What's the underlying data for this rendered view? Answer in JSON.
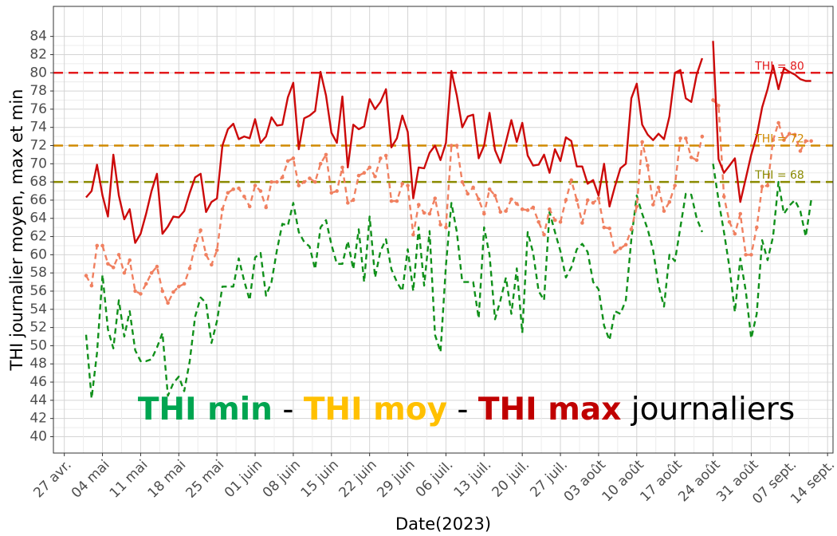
{
  "chart_data": {
    "type": "line",
    "x_title": "Date(2023)",
    "y_title": "THI journalier moyen, max et min",
    "xlim": [
      "2023-04-25",
      "2023-09-15"
    ],
    "ylim": [
      38.2,
      87.3
    ],
    "yticks": [
      40,
      42,
      44,
      46,
      48,
      50,
      52,
      54,
      56,
      58,
      60,
      62,
      64,
      66,
      68,
      70,
      72,
      74,
      76,
      78,
      80,
      82,
      84
    ],
    "xticks": [
      {
        "value": "2023-04-27",
        "label": "27 avr."
      },
      {
        "value": "2023-05-04",
        "label": "04 mai"
      },
      {
        "value": "2023-05-11",
        "label": "11 mai"
      },
      {
        "value": "2023-05-18",
        "label": "18 mai"
      },
      {
        "value": "2023-05-25",
        "label": "25 mai"
      },
      {
        "value": "2023-06-01",
        "label": "01 juin"
      },
      {
        "value": "2023-06-08",
        "label": "08 juin"
      },
      {
        "value": "2023-06-15",
        "label": "15 juin"
      },
      {
        "value": "2023-06-22",
        "label": "22 juin"
      },
      {
        "value": "2023-06-29",
        "label": "29 juin"
      },
      {
        "value": "2023-07-06",
        "label": "06 juil."
      },
      {
        "value": "2023-07-13",
        "label": "13 juil."
      },
      {
        "value": "2023-07-20",
        "label": "20 juil."
      },
      {
        "value": "2023-07-27",
        "label": "27 juil."
      },
      {
        "value": "2023-08-03",
        "label": "03 août"
      },
      {
        "value": "2023-08-10",
        "label": "10 août"
      },
      {
        "value": "2023-08-17",
        "label": "17 août"
      },
      {
        "value": "2023-08-24",
        "label": "24 août"
      },
      {
        "value": "2023-08-31",
        "label": "31 août"
      },
      {
        "value": "2023-09-07",
        "label": "07 sept."
      },
      {
        "value": "2023-09-14",
        "label": "14 sept."
      }
    ],
    "grid": true,
    "x": [
      "2023-05-01",
      "2023-05-02",
      "2023-05-03",
      "2023-05-04",
      "2023-05-05",
      "2023-05-06",
      "2023-05-07",
      "2023-05-08",
      "2023-05-09",
      "2023-05-10",
      "2023-05-11",
      "2023-05-12",
      "2023-05-13",
      "2023-05-14",
      "2023-05-15",
      "2023-05-16",
      "2023-05-17",
      "2023-05-18",
      "2023-05-19",
      "2023-05-20",
      "2023-05-21",
      "2023-05-22",
      "2023-05-23",
      "2023-05-24",
      "2023-05-25",
      "2023-05-26",
      "2023-05-27",
      "2023-05-28",
      "2023-05-29",
      "2023-05-30",
      "2023-05-31",
      "2023-06-01",
      "2023-06-02",
      "2023-06-03",
      "2023-06-04",
      "2023-06-05",
      "2023-06-06",
      "2023-06-07",
      "2023-06-08",
      "2023-06-09",
      "2023-06-10",
      "2023-06-11",
      "2023-06-12",
      "2023-06-13",
      "2023-06-14",
      "2023-06-15",
      "2023-06-16",
      "2023-06-17",
      "2023-06-18",
      "2023-06-19",
      "2023-06-20",
      "2023-06-21",
      "2023-06-22",
      "2023-06-23",
      "2023-06-24",
      "2023-06-25",
      "2023-06-26",
      "2023-06-27",
      "2023-06-28",
      "2023-06-29",
      "2023-06-30",
      "2023-07-01",
      "2023-07-02",
      "2023-07-03",
      "2023-07-04",
      "2023-07-05",
      "2023-07-06",
      "2023-07-07",
      "2023-07-08",
      "2023-07-09",
      "2023-07-10",
      "2023-07-11",
      "2023-07-12",
      "2023-07-13",
      "2023-07-14",
      "2023-07-15",
      "2023-07-16",
      "2023-07-17",
      "2023-07-18",
      "2023-07-19",
      "2023-07-20",
      "2023-07-21",
      "2023-07-22",
      "2023-07-23",
      "2023-07-24",
      "2023-07-25",
      "2023-07-26",
      "2023-07-27",
      "2023-07-28",
      "2023-07-29",
      "2023-07-30",
      "2023-07-31",
      "2023-08-01",
      "2023-08-02",
      "2023-08-03",
      "2023-08-04",
      "2023-08-05",
      "2023-08-06",
      "2023-08-07",
      "2023-08-08",
      "2023-08-09",
      "2023-08-10",
      "2023-08-11",
      "2023-08-12",
      "2023-08-13",
      "2023-08-14",
      "2023-08-15",
      "2023-08-16",
      "2023-08-17",
      "2023-08-18",
      "2023-08-19",
      "2023-08-20",
      "2023-08-21",
      "2023-08-22",
      "2023-08-23",
      "2023-08-24",
      "2023-08-25",
      "2023-08-26",
      "2023-08-27",
      "2023-08-28",
      "2023-08-29",
      "2023-08-30",
      "2023-08-31",
      "2023-09-01",
      "2023-09-02",
      "2023-09-03",
      "2023-09-04",
      "2023-09-05",
      "2023-09-06",
      "2023-09-07",
      "2023-09-08",
      "2023-09-09",
      "2023-09-10",
      "2023-09-11"
    ],
    "series": [
      {
        "color": "#10901a",
        "dash": "7,5",
        "markers": false,
        "values": [
          51.2,
          44.2,
          49.2,
          57.8,
          51.8,
          49.7,
          55,
          51,
          53.8,
          49.5,
          48.3,
          48.3,
          48.5,
          49.8,
          51.4,
          44.5,
          45.9,
          46.6,
          45,
          48.3,
          53.2,
          55.3,
          54.7,
          50.3,
          52.7,
          56.5,
          56.5,
          56.5,
          59.6,
          57.1,
          55,
          59.7,
          60.2,
          55.5,
          57,
          60.5,
          63.4,
          63.2,
          65.7,
          62.5,
          61.4,
          60.9,
          58.4,
          63,
          63.8,
          61.1,
          59,
          59,
          61.5,
          58.4,
          62.8,
          57,
          64.2,
          57.5,
          60.4,
          61.7,
          58.4,
          57,
          56,
          60.6,
          56,
          63,
          56.6,
          62.6,
          51.2,
          49.3,
          58.8,
          65.7,
          62.5,
          57,
          57,
          57,
          53,
          63,
          60,
          52.9,
          55,
          57.5,
          53.5,
          58.5,
          51.4,
          62.5,
          60.2,
          56,
          55,
          64.7,
          62.5,
          60.4,
          57.5,
          58.6,
          60.6,
          61.2,
          60.3,
          57,
          56.2,
          52.2,
          50.6,
          53.8,
          53.5,
          55,
          61.7,
          66.5,
          64.5,
          62.8,
          60.5,
          56.6,
          54.3,
          60,
          59.3,
          63,
          66.7,
          66.6,
          64,
          62.5,
          null,
          70,
          66,
          62.5,
          58.6,
          53.7,
          59.6,
          56,
          50.8,
          53.5,
          61.6,
          59.4,
          62,
          68,
          64.5,
          65.4,
          66,
          64.8,
          62,
          66
        ]
      },
      {
        "color": "#f08060",
        "dash": "7,5",
        "markers": true,
        "values": [
          57.7,
          56.6,
          61,
          61,
          59,
          58.6,
          60,
          58,
          59.4,
          56,
          55.7,
          56.8,
          58,
          58.7,
          56,
          54.7,
          55.9,
          56.5,
          56.8,
          58.5,
          61,
          62.7,
          60,
          58.9,
          60.5,
          65,
          66.8,
          67.2,
          67.3,
          66.4,
          65.3,
          67.6,
          67,
          65.2,
          68,
          68,
          68.5,
          70.3,
          70.6,
          67.6,
          68,
          68.4,
          68,
          70,
          71,
          66.8,
          67,
          69.6,
          65.7,
          66,
          68.7,
          69,
          69.6,
          68.6,
          70.6,
          70.9,
          65.9,
          65.9,
          67.8,
          67.6,
          62.2,
          65.5,
          64.6,
          64.5,
          66.2,
          63.3,
          63,
          72,
          72,
          68,
          66.7,
          67.4,
          66.1,
          64.5,
          67.2,
          66.5,
          64.7,
          64.8,
          66.1,
          65.6,
          65,
          64.9,
          65.2,
          63.6,
          62.2,
          65,
          63.8,
          63.6,
          66,
          68.2,
          66,
          63.5,
          66,
          65.7,
          66.2,
          63,
          62.9,
          60.3,
          60.7,
          61.1,
          62.8,
          65.3,
          72.4,
          69.8,
          65.5,
          67.4,
          64.8,
          65.8,
          67.6,
          72.8,
          72.8,
          70.7,
          70.4,
          73,
          null,
          77,
          76.4,
          66.4,
          63.6,
          62.3,
          64.5,
          60,
          60,
          63,
          67.5,
          67.6,
          72.6,
          74.5,
          72.6,
          73.3,
          73.2,
          71.4,
          72.5,
          72.5
        ]
      },
      {
        "color": "#cc0a0a",
        "dash": "none",
        "markers": false,
        "values": [
          66.3,
          67,
          69.9,
          66.5,
          64.2,
          71,
          66.5,
          63.9,
          65,
          61.3,
          62.3,
          64.5,
          67,
          68.9,
          62.3,
          63.1,
          64.2,
          64.1,
          64.8,
          66.8,
          68.5,
          68.9,
          64.7,
          65.8,
          66.2,
          72,
          73.8,
          74.4,
          72.7,
          73,
          72.8,
          74.9,
          72.3,
          73,
          75.1,
          74.2,
          74.3,
          77.3,
          78.9,
          71.6,
          75,
          75.3,
          75.8,
          80.1,
          77.5,
          73.4,
          72.3,
          77.4,
          69.6,
          74.3,
          73.8,
          74.1,
          77.1,
          76,
          76.8,
          78.2,
          71.8,
          72.8,
          75.3,
          73.5,
          66.2,
          69.6,
          69.5,
          71.2,
          72,
          70.4,
          72.3,
          80.2,
          77.5,
          74,
          75.2,
          75.4,
          70.6,
          72,
          75.6,
          71.5,
          70.1,
          72.4,
          74.8,
          72.4,
          74.5,
          70.9,
          69.8,
          69.9,
          71,
          69,
          71.6,
          70.3,
          72.9,
          72.5,
          69.7,
          69.7,
          67.8,
          68.2,
          66.5,
          70,
          65.3,
          67.5,
          69.5,
          70,
          77.2,
          78.8,
          74.3,
          73.2,
          72.6,
          73.3,
          72.7,
          75.2,
          80,
          80.3,
          77.2,
          76.8,
          79.8,
          81.6,
          null,
          83.5,
          70.5,
          69,
          69.8,
          70.6,
          65.8,
          68.4,
          71,
          73.1,
          76.2,
          78.2,
          80.8,
          78.2,
          80.5,
          80.1,
          79.8,
          79.3,
          79.1,
          79.1
        ]
      }
    ],
    "hlines": [
      {
        "value": 80,
        "label": "THI = 80",
        "color": "#e31a1c"
      },
      {
        "value": 72,
        "label": "THI = 72",
        "color": "#d08a00"
      },
      {
        "value": 68,
        "label": "THI = 68",
        "color": "#8a8a00"
      }
    ],
    "annotation": [
      {
        "text": "THI min",
        "color": "#00a550",
        "bold": true
      },
      {
        "text": "-",
        "color": "#000000",
        "bold": false
      },
      {
        "text": "THI moy",
        "color": "#ffc000",
        "bold": true
      },
      {
        "text": "-",
        "color": "#000000",
        "bold": false
      },
      {
        "text": "THI max",
        "color": "#c00000",
        "bold": true
      },
      {
        "text": "journaliers",
        "color": "#000000",
        "bold": false
      }
    ]
  }
}
